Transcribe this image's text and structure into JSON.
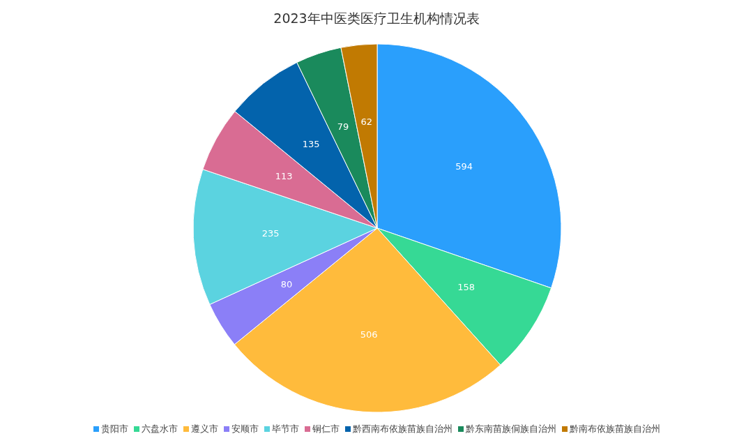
{
  "chart_data": {
    "type": "pie",
    "title": "2023年中医类医疗卫生机构情况表",
    "categories": [
      "贵阳市",
      "六盘水市",
      "遵义市",
      "安顺市",
      "毕节市",
      "铜仁市",
      "黔西南布依族苗族自治州",
      "黔东南苗族侗族自治州",
      "黔南布依族苗族自治州"
    ],
    "values": [
      594,
      158,
      506,
      80,
      235,
      113,
      135,
      79,
      62
    ],
    "colors": [
      "#2a9ffc",
      "#36d995",
      "#ffbb3c",
      "#8b7ff7",
      "#5bd3e0",
      "#d96c93",
      "#0363ac",
      "#1a8a5c",
      "#c17a02"
    ],
    "data_labels": true,
    "legend": "bottom"
  }
}
